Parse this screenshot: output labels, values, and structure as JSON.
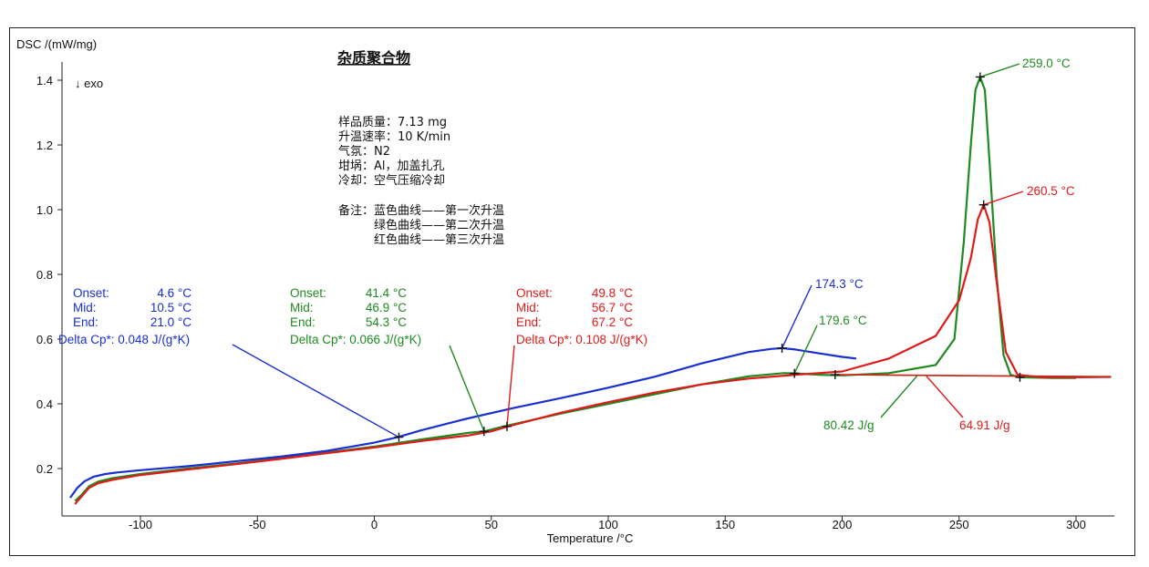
{
  "chart_data": {
    "type": "line",
    "title": "杂质聚合物",
    "ylabel": "DSC /(mW/mg)",
    "xlabel": "Temperature /°C",
    "direction_note": "↓ exo",
    "xlim": [
      -132,
      315
    ],
    "ylim": [
      0.08,
      1.5
    ],
    "x_ticks": [
      -100,
      -50,
      0,
      50,
      100,
      150,
      200,
      250,
      300
    ],
    "y_ticks": [
      0.2,
      0.4,
      0.6,
      0.8,
      1.0,
      1.2,
      1.4
    ],
    "sample_info": [
      "样品质量：7.13  mg",
      "升温速率：10  K/min",
      "气氛：N2",
      "坩埚：Al，加盖扎孔",
      "冷却：空气压缩冷却"
    ],
    "remarks": [
      "备注：蓝色曲线——第一次升温",
      "绿色曲线——第二次升温",
      "红色曲线——第三次升温"
    ],
    "series": [
      {
        "name": "第一次升温",
        "color": "#1a2fd0",
        "x": [
          -130,
          -127,
          -124,
          -120,
          -115,
          -110,
          -100,
          -80,
          -60,
          -40,
          -20,
          0,
          10,
          20,
          40,
          60,
          80,
          100,
          120,
          140,
          160,
          170,
          174.3,
          180,
          190,
          200,
          206
        ],
        "y": [
          0.11,
          0.14,
          0.16,
          0.175,
          0.183,
          0.188,
          0.195,
          0.207,
          0.222,
          0.237,
          0.255,
          0.28,
          0.297,
          0.318,
          0.355,
          0.388,
          0.418,
          0.45,
          0.484,
          0.525,
          0.56,
          0.57,
          0.572,
          0.568,
          0.556,
          0.545,
          0.54
        ]
      },
      {
        "name": "第二次升温",
        "color": "#1f8a1f",
        "x": [
          -128,
          -125,
          -122,
          -118,
          -112,
          -100,
          -80,
          -60,
          -40,
          -20,
          0,
          20,
          40,
          47,
          55,
          80,
          100,
          120,
          140,
          160,
          175,
          180,
          190,
          200,
          220,
          240,
          248,
          252,
          255,
          257,
          259,
          261,
          263,
          266,
          269,
          272,
          276,
          290,
          300
        ],
        "y": [
          0.1,
          0.12,
          0.145,
          0.16,
          0.17,
          0.183,
          0.2,
          0.215,
          0.232,
          0.25,
          0.268,
          0.29,
          0.31,
          0.315,
          0.33,
          0.37,
          0.4,
          0.43,
          0.46,
          0.485,
          0.495,
          0.494,
          0.49,
          0.488,
          0.495,
          0.52,
          0.6,
          0.9,
          1.2,
          1.37,
          1.41,
          1.37,
          1.15,
          0.8,
          0.55,
          0.49,
          0.482,
          0.48,
          0.48
        ]
      },
      {
        "name": "第三次升温",
        "color": "#e01a1a",
        "x": [
          -128,
          -125,
          -122,
          -118,
          -112,
          -100,
          -80,
          -60,
          -40,
          -20,
          0,
          20,
          40,
          50,
          57,
          80,
          100,
          120,
          140,
          160,
          180,
          200,
          220,
          240,
          250,
          255,
          258,
          260.5,
          263,
          266,
          270,
          275,
          285,
          300,
          315
        ],
        "y": [
          0.09,
          0.115,
          0.14,
          0.155,
          0.165,
          0.18,
          0.197,
          0.213,
          0.23,
          0.248,
          0.265,
          0.285,
          0.302,
          0.315,
          0.33,
          0.373,
          0.405,
          0.435,
          0.46,
          0.478,
          0.49,
          0.5,
          0.54,
          0.61,
          0.72,
          0.85,
          0.97,
          1.015,
          0.96,
          0.78,
          0.56,
          0.49,
          0.482,
          0.482,
          0.483
        ]
      }
    ],
    "annotations": {
      "blue_glass": {
        "color": "#1a2fd0",
        "rows": [
          [
            "Onset:",
            "4.6 °C"
          ],
          [
            "Mid:",
            "10.5 °C"
          ],
          [
            "End:",
            "21.0 °C"
          ]
        ],
        "delta": "Delta Cp*: 0.048 J/(g*K)",
        "point": [
          10.5,
          0.297
        ]
      },
      "green_glass": {
        "color": "#1f8a1f",
        "rows": [
          [
            "Onset:",
            "41.4 °C"
          ],
          [
            "Mid:",
            "46.9 °C"
          ],
          [
            "End:",
            "54.3 °C"
          ]
        ],
        "delta": "Delta Cp*: 0.066 J/(g*K)",
        "point": [
          46.9,
          0.315
        ]
      },
      "red_glass": {
        "color": "#e01a1a",
        "rows": [
          [
            "Onset:",
            "49.8 °C"
          ],
          [
            "Mid:",
            "56.7 °C"
          ],
          [
            "End:",
            "67.2 °C"
          ]
        ],
        "delta": "Delta Cp*: 0.108 J/(g*K)",
        "point": [
          56.7,
          0.33
        ]
      },
      "peaks": [
        {
          "label": "174.3 °C",
          "color": "#1a2fd0",
          "point": [
            174.3,
            0.572
          ]
        },
        {
          "label": "179.6 °C",
          "color": "#1f8a1f",
          "point": [
            179.6,
            0.494
          ]
        },
        {
          "label": "259.0 °C",
          "color": "#1f8a1f",
          "point": [
            259.0,
            1.41
          ]
        },
        {
          "label": "260.5 °C",
          "color": "#e01a1a",
          "point": [
            260.5,
            1.015
          ]
        }
      ],
      "areas": [
        {
          "label": "80.42 J/g",
          "color": "#1f8a1f",
          "point": [
            232,
            0.486
          ]
        },
        {
          "label": "64.91 J/g",
          "color": "#e01a1a",
          "point": [
            236,
            0.486
          ]
        }
      ],
      "baseline_marks": [
        [
          197,
          0.49
        ],
        [
          276,
          0.482
        ]
      ]
    }
  }
}
